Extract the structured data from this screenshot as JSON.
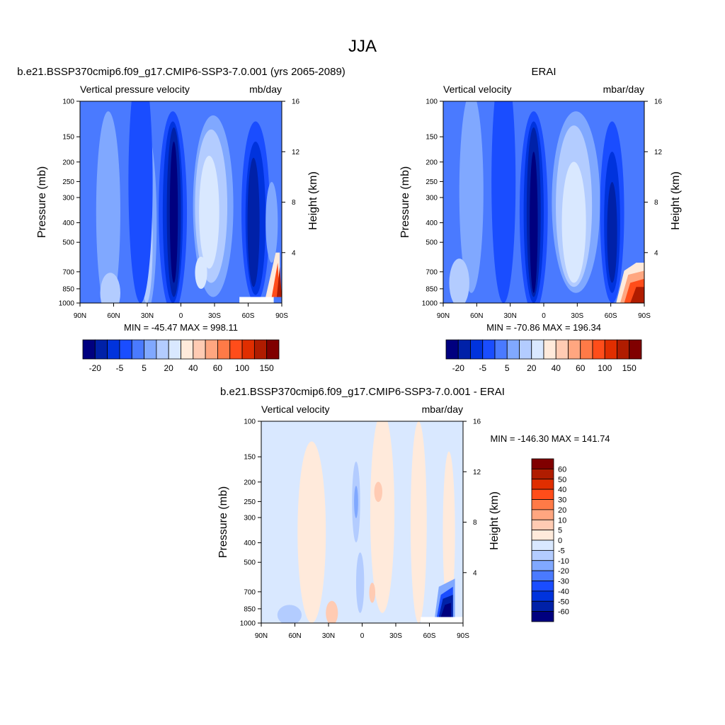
{
  "title": "JJA",
  "colors": {
    "levels16": [
      "#00007f",
      "#0021a8",
      "#0033dd",
      "#1a4dff",
      "#4a7aff",
      "#80a8ff",
      "#b3ccff",
      "#d9e8ff",
      "#ffeadb",
      "#ffcbb3",
      "#ffa680",
      "#ff7a47",
      "#ff4d1a",
      "#e02e00",
      "#b01c00",
      "#800000"
    ]
  },
  "chart_data": [
    {
      "type": "heatmap",
      "subtype": "contour",
      "title": "b.e21.BSSP370cmip6.f09_g17.CMIP6-SSP3-7.0.001 (yrs 2065-2089)",
      "left_string": "Vertical pressure velocity",
      "right_string": "mb/day",
      "ylabel": "Pressure (mb)",
      "y2label": "Height (km)",
      "x_ticks": [
        "90N",
        "60N",
        "30N",
        "0",
        "30S",
        "60S",
        "90S"
      ],
      "y_ticks": [
        "100",
        "150",
        "200",
        "250",
        "300",
        "400",
        "500",
        "700",
        "850",
        "1000"
      ],
      "y_scale": "log",
      "ylim": [
        1000,
        100
      ],
      "y2_ticks": [
        "4",
        "8",
        "12",
        "16"
      ],
      "stats": "MIN = -45.47  MAX = 998.11",
      "colorbar_labels": [
        "-20",
        "-5",
        "5",
        "20",
        "40",
        "60",
        "100",
        "150"
      ],
      "colorbar_orientation": "horizontal"
    },
    {
      "type": "heatmap",
      "subtype": "contour",
      "title": "ERAI",
      "left_string": "Vertical velocity",
      "right_string": "mbar/day",
      "ylabel": "Pressure (mb)",
      "y2label": "Height (km)",
      "x_ticks": [
        "90N",
        "60N",
        "30N",
        "0",
        "30S",
        "60S",
        "90S"
      ],
      "y_ticks": [
        "100",
        "150",
        "200",
        "250",
        "300",
        "400",
        "500",
        "700",
        "850",
        "1000"
      ],
      "y_scale": "log",
      "ylim": [
        1000,
        100
      ],
      "y2_ticks": [
        "4",
        "8",
        "12",
        "16"
      ],
      "stats": "MIN = -70.86  MAX = 196.34",
      "colorbar_labels": [
        "-20",
        "-5",
        "5",
        "20",
        "40",
        "60",
        "100",
        "150"
      ],
      "colorbar_orientation": "horizontal"
    },
    {
      "type": "heatmap",
      "subtype": "contour",
      "title": "b.e21.BSSP370cmip6.f09_g17.CMIP6-SSP3-7.0.001 - ERAI",
      "left_string": "Vertical velocity",
      "right_string": "mbar/day",
      "ylabel": "Pressure (mb)",
      "y2label": "Height (km)",
      "x_ticks": [
        "90N",
        "60N",
        "30N",
        "0",
        "30S",
        "60S",
        "90S"
      ],
      "y_ticks": [
        "100",
        "150",
        "200",
        "250",
        "300",
        "400",
        "500",
        "700",
        "850",
        "1000"
      ],
      "y_scale": "log",
      "ylim": [
        1000,
        100
      ],
      "y2_ticks": [
        "4",
        "8",
        "12",
        "16"
      ],
      "stats": "MIN = -146.30  MAX = 141.74",
      "colorbar_labels": [
        "60",
        "50",
        "40",
        "30",
        "20",
        "10",
        "5",
        "0",
        "-5",
        "-10",
        "-20",
        "-30",
        "-40",
        "-50",
        "-60"
      ],
      "colorbar_orientation": "vertical"
    }
  ]
}
